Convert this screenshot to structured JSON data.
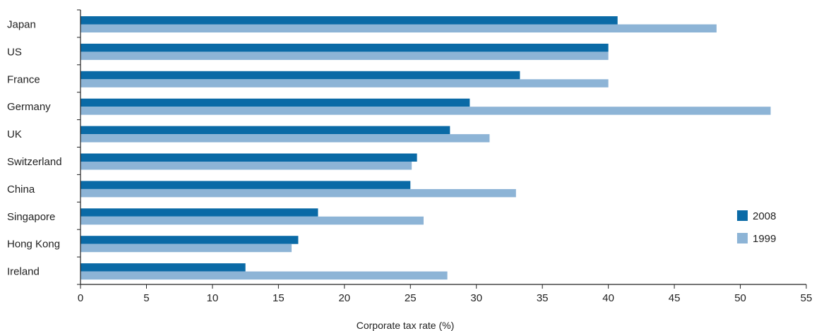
{
  "chart_data": {
    "type": "bar",
    "orientation": "horizontal",
    "title": "",
    "xlabel": "Corporate tax rate (%)",
    "ylabel": "",
    "xlim": [
      0,
      55
    ],
    "x_ticks": [
      "0",
      "5",
      "10",
      "15",
      "20",
      "25",
      "30",
      "35",
      "40",
      "45",
      "50",
      "55"
    ],
    "grid": false,
    "legend_position": "right",
    "categories": [
      "Japan",
      "US",
      "France",
      "Germany",
      "UK",
      "Switzerland",
      "China",
      "Singapore",
      "Hong Kong",
      "Ireland"
    ],
    "series": [
      {
        "name": "2008",
        "color": "#0a6aa6",
        "values": [
          40.7,
          40.0,
          33.3,
          29.5,
          28.0,
          25.5,
          25.0,
          18.0,
          16.5,
          12.5
        ]
      },
      {
        "name": "1999",
        "color": "#8db4d6",
        "values": [
          48.2,
          40.0,
          40.0,
          52.3,
          31.0,
          25.1,
          33.0,
          26.0,
          16.0,
          27.8
        ]
      }
    ]
  }
}
